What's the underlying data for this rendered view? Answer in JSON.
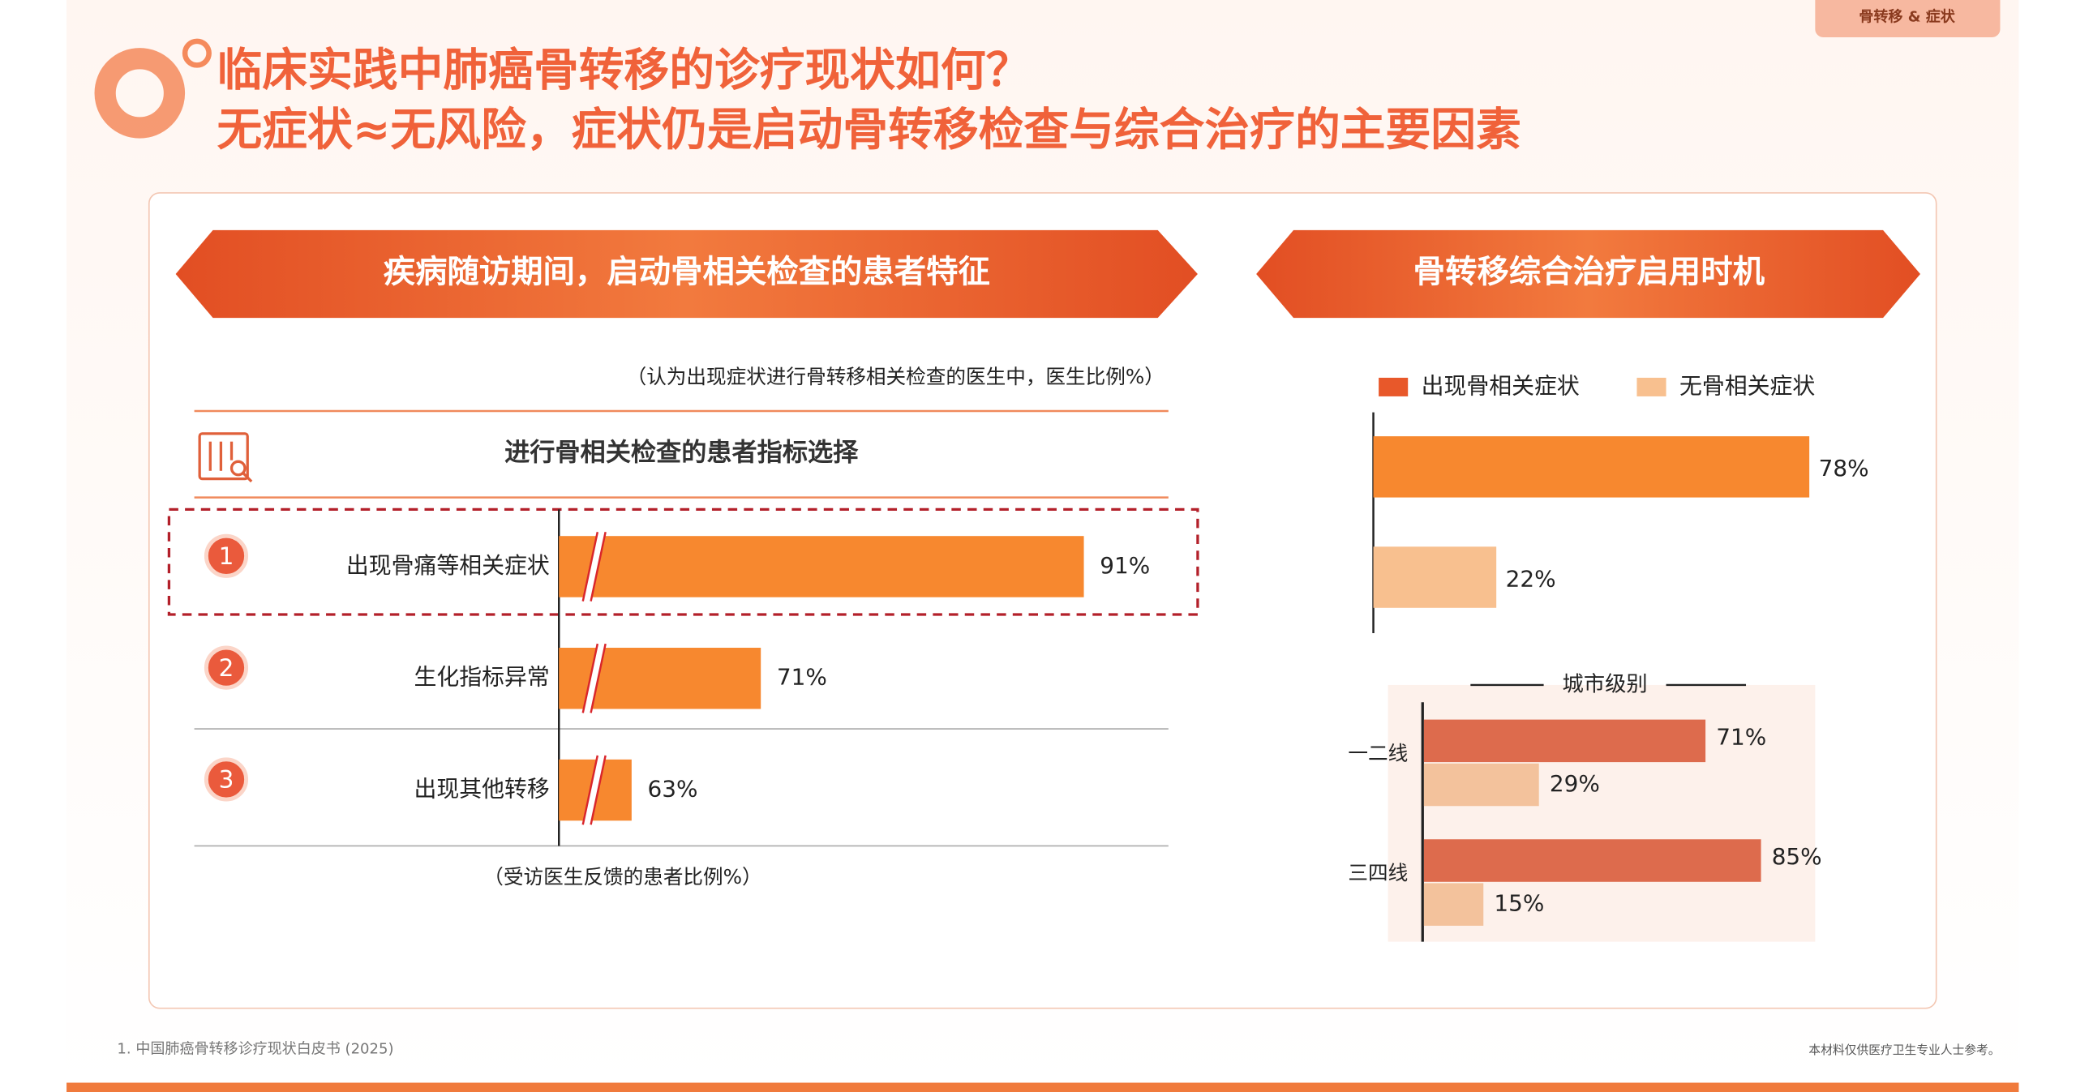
{
  "header": {
    "title_lines": [
      "临床实践中肺癌骨转移的诊疗现状如何？",
      "无症状≈无风险，症状仍是启动骨转移检查与综合治疗的主要因素"
    ],
    "tag": "骨转移 & 症状"
  },
  "footer": {
    "source": "1. 中国肺癌骨转移诊疗现状白皮书 (2025)",
    "disclaimer": "本材料仅供医疗卫生专业人士参考。"
  },
  "chart_data": [
    {
      "type": "bar",
      "orientation": "horizontal",
      "title": "疾病随访期间，启动骨相关检查的患者特征",
      "subtitle": "（认为出现症状进行骨转移相关检查的医生中，医生比例%）",
      "header": "进行骨相关检查的患者指标选择",
      "note": "（受访医生反馈的患者比例%）",
      "ranks": [
        "1",
        "2",
        "3"
      ],
      "categories": [
        "出现骨痛等相关症状",
        "生化指标异常",
        "出现其他转移"
      ],
      "values": [
        91,
        71,
        63
      ],
      "value_labels": [
        "91%",
        "71%",
        "63%"
      ],
      "color": "#f7882f",
      "xlim": [
        58.5,
        95
      ],
      "axis_break": true
    },
    {
      "type": "bar",
      "orientation": "horizontal",
      "title": "骨转移综合治疗启用时机",
      "series": [
        {
          "name": "出现骨相关症状",
          "color": "#f7882f",
          "legend_color": "#e8582a",
          "values": [
            78
          ],
          "value_labels": [
            "78%"
          ]
        },
        {
          "name": "无骨相关症状",
          "color": "#f8c08f",
          "legend_color": "#f8c08f",
          "values": [
            22
          ],
          "value_labels": [
            "22%"
          ]
        }
      ],
      "xlim": [
        0,
        100
      ],
      "legend": "top"
    },
    {
      "type": "grouped_bar",
      "orientation": "horizontal",
      "title": "城市级别",
      "categories": [
        "一二线",
        "三四线"
      ],
      "series": [
        {
          "color": "#dd6b4d",
          "values": [
            71,
            85
          ],
          "value_labels": [
            "71%",
            "85%"
          ]
        },
        {
          "color": "#f3c29c",
          "values": [
            29,
            15
          ],
          "value_labels": [
            "29%",
            "15%"
          ]
        }
      ],
      "xlim": [
        0,
        100
      ]
    }
  ]
}
